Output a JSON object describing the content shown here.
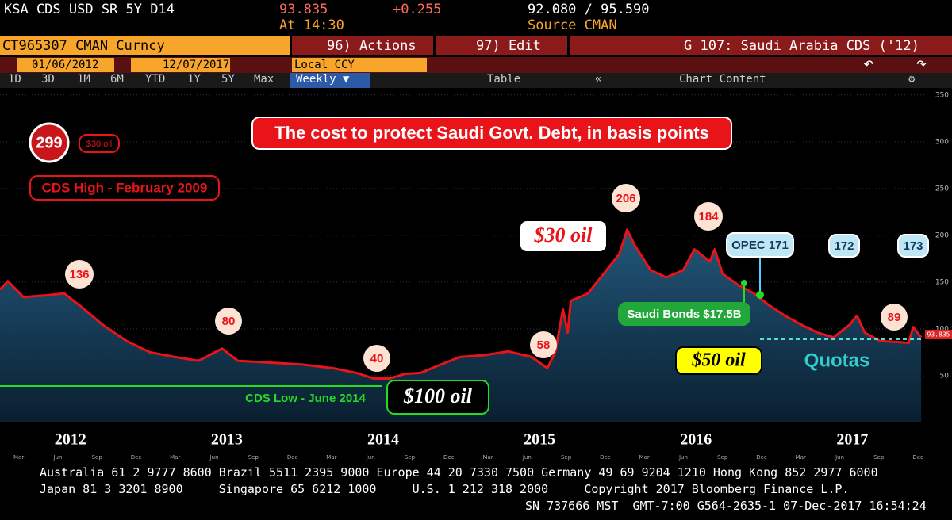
{
  "terminal": {
    "ticker": "KSA CDS USD SR 5Y D14",
    "last": "93.835",
    "change": "+0.255",
    "low_high": "92.080 / 95.590",
    "time": "At 14:30",
    "source": "Source CMAN",
    "security": "CT965307 CMAN Curncy",
    "actions": "96) Actions",
    "edit": "97) Edit",
    "graph": "G 107: Saudi Arabia CDS ('12)",
    "start": "01/06/2012",
    "end": "12/07/2017",
    "currency": "Local CCY",
    "tabs": [
      "1D",
      "3D",
      "1M",
      "6M",
      "YTD",
      "1Y",
      "5Y",
      "Max"
    ],
    "frequency": "Weekly ▼",
    "table": "Table",
    "chart_content": "Chart Content",
    "footer": [
      "Australia 61 2 9777 8600 Brazil 5511 2395 9000 Europe 44 20 7330 7500 Germany 49 69 9204 1210 Hong Kong 852 2977 6000",
      "Japan 81 3 3201 8900     Singapore 65 6212 1000     U.S. 1 212 318 2000     Copyright 2017 Bloomberg Finance L.P.",
      "SN 737666 MST  GMT-7:00 G564-2635-1 07-Dec-2017 16:54:24"
    ]
  },
  "chart_data": {
    "type": "area",
    "color": "#e8141a",
    "x": [
      2012.05,
      2012.1,
      2012.2,
      2012.35,
      2012.46,
      2012.56,
      2012.71,
      2012.86,
      2013.01,
      2013.17,
      2013.32,
      2013.47,
      2013.57,
      2013.78,
      2013.98,
      2014.18,
      2014.33,
      2014.44,
      2014.54,
      2014.64,
      2014.74,
      2014.84,
      2014.99,
      2015.15,
      2015.3,
      2015.45,
      2015.55,
      2015.6,
      2015.65,
      2015.68,
      2015.7,
      2015.81,
      2015.91,
      2016.01,
      2016.06,
      2016.11,
      2016.21,
      2016.31,
      2016.42,
      2016.49,
      2016.59,
      2016.62,
      2016.67,
      2016.77,
      2016.87,
      2016.97,
      2017.08,
      2017.18,
      2017.28,
      2017.38,
      2017.48,
      2017.53,
      2017.58,
      2017.68,
      2017.79,
      2017.86,
      2017.89,
      2017.94
    ],
    "values": [
      142,
      151,
      134,
      136,
      138,
      125,
      104,
      87,
      75,
      70,
      66,
      79,
      66,
      64,
      62,
      58,
      53,
      47,
      47,
      52,
      53,
      60,
      70,
      72,
      76,
      70,
      58,
      75,
      121,
      96,
      130,
      138,
      159,
      180,
      206,
      189,
      163,
      155,
      163,
      185,
      172,
      185,
      159,
      147,
      138,
      125,
      113,
      104,
      96,
      91,
      104,
      114,
      96,
      87,
      86,
      85,
      102,
      91
    ],
    "xlim": [
      2012.05,
      2017.96
    ],
    "ylim": [
      0,
      360
    ],
    "yticks": [
      50,
      100,
      150,
      200,
      250,
      300,
      350
    ],
    "xticks": [
      {
        "value": 2012.5,
        "label": "2012"
      },
      {
        "value": 2013.5,
        "label": "2013"
      },
      {
        "value": 2014.5,
        "label": "2014"
      },
      {
        "value": 2015.5,
        "label": "2015"
      },
      {
        "value": 2016.5,
        "label": "2016"
      },
      {
        "value": 2017.5,
        "label": "2017"
      }
    ],
    "minor_xticks": [
      {
        "value": 2012.17,
        "label": "Mar"
      },
      {
        "value": 2012.42,
        "label": "Jun"
      },
      {
        "value": 2012.67,
        "label": "Sep"
      },
      {
        "value": 2012.92,
        "label": "Dec"
      },
      {
        "value": 2013.17,
        "label": "Mar"
      },
      {
        "value": 2013.42,
        "label": "Jun"
      },
      {
        "value": 2013.67,
        "label": "Sep"
      },
      {
        "value": 2013.92,
        "label": "Dec"
      },
      {
        "value": 2014.17,
        "label": "Mar"
      },
      {
        "value": 2014.42,
        "label": "Jun"
      },
      {
        "value": 2014.67,
        "label": "Sep"
      },
      {
        "value": 2014.92,
        "label": "Dec"
      },
      {
        "value": 2015.17,
        "label": "Mar"
      },
      {
        "value": 2015.42,
        "label": "Jun"
      },
      {
        "value": 2015.67,
        "label": "Sep"
      },
      {
        "value": 2015.92,
        "label": "Dec"
      },
      {
        "value": 2016.17,
        "label": "Mar"
      },
      {
        "value": 2016.42,
        "label": "Jun"
      },
      {
        "value": 2016.67,
        "label": "Sep"
      },
      {
        "value": 2016.92,
        "label": "Dec"
      },
      {
        "value": 2017.17,
        "label": "Mar"
      },
      {
        "value": 2017.42,
        "label": "Jun"
      },
      {
        "value": 2017.67,
        "label": "Sep"
      },
      {
        "value": 2017.92,
        "label": "Dec"
      }
    ],
    "annotations": [
      "The cost to protect Saudi Govt. Debt, in basis points",
      "299",
      "$30 oil",
      "CDS High - February 2009",
      "136",
      "80",
      "40",
      "58",
      "206",
      "184",
      "89",
      "$30 oil",
      "OPEC 171",
      "172",
      "173",
      "Saudi Bonds $17.5B",
      "$50 oil",
      "Quotas",
      "CDS Low - June 2014",
      "$100 oil"
    ]
  }
}
